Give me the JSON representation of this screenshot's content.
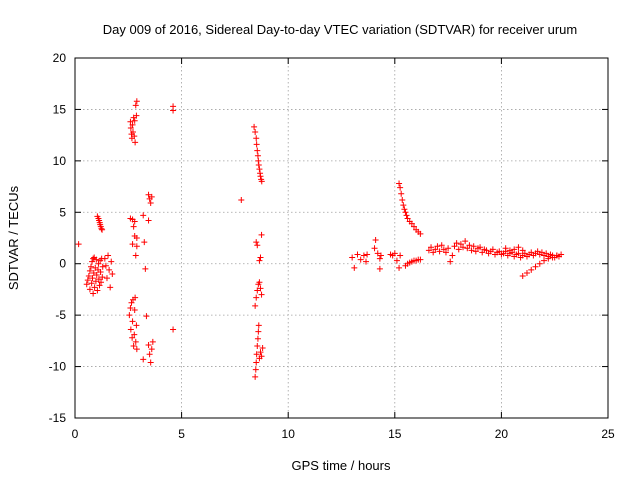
{
  "chart_data": {
    "type": "scatter",
    "title": "Day 009 of 2016, Sidereal Day-to-day VTEC variation (SDTVAR) for receiver urum",
    "xlabel": "GPS time / hours",
    "ylabel": "SDTVAR / TECUs",
    "xlim": [
      0,
      25
    ],
    "ylim": [
      -15,
      20
    ],
    "xticks": [
      0,
      5,
      10,
      15,
      20,
      25
    ],
    "xtick_labels": [
      "0",
      "5",
      "10",
      "15",
      "20",
      "25"
    ],
    "yticks": [
      -15,
      -10,
      -5,
      0,
      5,
      10,
      15,
      20
    ],
    "ytick_labels": [
      "-15",
      "-10",
      "-5",
      "0",
      "5",
      "10",
      "15",
      "20"
    ],
    "grid": true,
    "marker": "+",
    "color": "#ff0000",
    "series": [
      {
        "name": "SDTVAR",
        "points": [
          [
            0.17,
            1.9
          ],
          [
            0.55,
            -2.0
          ],
          [
            0.6,
            -1.6
          ],
          [
            0.65,
            -1.2
          ],
          [
            0.7,
            -0.7
          ],
          [
            0.7,
            -2.5
          ],
          [
            0.75,
            -0.3
          ],
          [
            0.78,
            -1.9
          ],
          [
            0.8,
            0.2
          ],
          [
            0.82,
            -1.4
          ],
          [
            0.85,
            0.5
          ],
          [
            0.85,
            -2.9
          ],
          [
            0.88,
            -0.9
          ],
          [
            0.9,
            0.6
          ],
          [
            0.92,
            -2.3
          ],
          [
            0.95,
            -0.4
          ],
          [
            0.98,
            -1.7
          ],
          [
            1.0,
            0.4
          ],
          [
            1.02,
            -1.1
          ],
          [
            1.05,
            -2.6
          ],
          [
            1.08,
            -0.6
          ],
          [
            1.1,
            0.0
          ],
          [
            1.12,
            -1.5
          ],
          [
            1.15,
            -2.1
          ],
          [
            1.18,
            0.3
          ],
          [
            1.2,
            -0.8
          ],
          [
            1.22,
            -1.8
          ],
          [
            1.25,
            0.5
          ],
          [
            1.28,
            -1.3
          ],
          [
            1.3,
            -0.3
          ],
          [
            1.05,
            4.6
          ],
          [
            1.1,
            4.4
          ],
          [
            1.13,
            4.2
          ],
          [
            1.16,
            4.0
          ],
          [
            1.18,
            3.8
          ],
          [
            1.21,
            3.6
          ],
          [
            1.24,
            3.4
          ],
          [
            1.27,
            3.3
          ],
          [
            1.4,
            0.5
          ],
          [
            1.45,
            -0.2
          ],
          [
            1.5,
            -1.4
          ],
          [
            1.55,
            0.8
          ],
          [
            1.6,
            -0.6
          ],
          [
            1.65,
            -2.3
          ],
          [
            1.7,
            0.2
          ],
          [
            1.75,
            -1.0
          ],
          [
            2.6,
            13.8
          ],
          [
            2.62,
            13.2
          ],
          [
            2.65,
            12.6
          ],
          [
            2.67,
            12.2
          ],
          [
            2.7,
            13.5
          ],
          [
            2.72,
            12.8
          ],
          [
            2.75,
            14.2
          ],
          [
            2.78,
            12.4
          ],
          [
            2.8,
            13.9
          ],
          [
            2.82,
            11.8
          ],
          [
            2.85,
            15.4
          ],
          [
            2.88,
            14.4
          ],
          [
            2.9,
            15.8
          ],
          [
            2.6,
            4.4
          ],
          [
            2.7,
            4.3
          ],
          [
            2.75,
            3.6
          ],
          [
            2.8,
            4.1
          ],
          [
            2.7,
            1.9
          ],
          [
            2.8,
            2.7
          ],
          [
            2.9,
            2.5
          ],
          [
            2.85,
            0.8
          ],
          [
            2.9,
            1.7
          ],
          [
            2.55,
            -5.0
          ],
          [
            2.6,
            -4.3
          ],
          [
            2.62,
            -6.4
          ],
          [
            2.65,
            -3.8
          ],
          [
            2.68,
            -7.2
          ],
          [
            2.7,
            -5.6
          ],
          [
            2.72,
            -3.5
          ],
          [
            2.75,
            -8.0
          ],
          [
            2.78,
            -6.9
          ],
          [
            2.8,
            -4.5
          ],
          [
            2.82,
            -3.3
          ],
          [
            2.85,
            -7.6
          ],
          [
            2.88,
            -6.0
          ],
          [
            2.9,
            -8.3
          ],
          [
            3.2,
            4.7
          ],
          [
            3.25,
            2.1
          ],
          [
            3.3,
            -0.5
          ],
          [
            3.35,
            -5.1
          ],
          [
            3.2,
            -9.3
          ],
          [
            3.45,
            6.7
          ],
          [
            3.5,
            6.3
          ],
          [
            3.55,
            5.9
          ],
          [
            3.6,
            6.5
          ],
          [
            3.45,
            4.2
          ],
          [
            3.45,
            -7.9
          ],
          [
            3.5,
            -8.8
          ],
          [
            3.55,
            -9.6
          ],
          [
            3.6,
            -8.3
          ],
          [
            3.65,
            -7.6
          ],
          [
            4.6,
            15.3
          ],
          [
            4.6,
            14.9
          ],
          [
            4.6,
            -6.4
          ],
          [
            7.8,
            6.2
          ],
          [
            8.4,
            13.3
          ],
          [
            8.45,
            12.8
          ],
          [
            8.5,
            12.2
          ],
          [
            8.52,
            11.6
          ],
          [
            8.55,
            11.0
          ],
          [
            8.58,
            10.5
          ],
          [
            8.6,
            10.0
          ],
          [
            8.62,
            9.6
          ],
          [
            8.65,
            9.2
          ],
          [
            8.68,
            8.8
          ],
          [
            8.7,
            8.5
          ],
          [
            8.73,
            8.2
          ],
          [
            8.76,
            8.0
          ],
          [
            8.5,
            2.1
          ],
          [
            8.55,
            1.8
          ],
          [
            8.65,
            0.3
          ],
          [
            8.7,
            0.6
          ],
          [
            8.75,
            2.8
          ],
          [
            8.45,
            -4.1
          ],
          [
            8.5,
            -3.3
          ],
          [
            8.55,
            -2.6
          ],
          [
            8.6,
            -2.0
          ],
          [
            8.65,
            -1.8
          ],
          [
            8.7,
            -2.4
          ],
          [
            8.75,
            -3.0
          ],
          [
            8.45,
            -11.0
          ],
          [
            8.48,
            -10.3
          ],
          [
            8.5,
            -9.6
          ],
          [
            8.52,
            -8.8
          ],
          [
            8.55,
            -8.0
          ],
          [
            8.58,
            -7.3
          ],
          [
            8.6,
            -6.6
          ],
          [
            8.62,
            -6.0
          ],
          [
            8.65,
            -9.2
          ],
          [
            8.7,
            -8.6
          ],
          [
            8.75,
            -9.0
          ],
          [
            8.8,
            -8.2
          ],
          [
            13.0,
            0.6
          ],
          [
            13.1,
            -0.4
          ],
          [
            13.25,
            0.9
          ],
          [
            13.4,
            0.4
          ],
          [
            13.55,
            0.8
          ],
          [
            13.65,
            0.2
          ],
          [
            13.7,
            0.9
          ],
          [
            14.05,
            1.5
          ],
          [
            14.1,
            2.3
          ],
          [
            14.2,
            1.0
          ],
          [
            14.3,
            0.5
          ],
          [
            14.3,
            -0.5
          ],
          [
            14.35,
            0.8
          ],
          [
            14.8,
            0.9
          ],
          [
            14.9,
            0.8
          ],
          [
            15.0,
            1.0
          ],
          [
            15.1,
            0.3
          ],
          [
            15.2,
            -0.4
          ],
          [
            15.25,
            0.8
          ],
          [
            15.2,
            7.8
          ],
          [
            15.25,
            7.4
          ],
          [
            15.3,
            6.8
          ],
          [
            15.35,
            6.2
          ],
          [
            15.4,
            5.7
          ],
          [
            15.45,
            5.3
          ],
          [
            15.5,
            5.0
          ],
          [
            15.55,
            4.7
          ],
          [
            15.6,
            4.4
          ],
          [
            15.7,
            4.1
          ],
          [
            15.8,
            3.9
          ],
          [
            15.9,
            3.6
          ],
          [
            16.0,
            3.3
          ],
          [
            16.1,
            3.1
          ],
          [
            16.2,
            2.9
          ],
          [
            15.5,
            -0.2
          ],
          [
            15.6,
            0.0
          ],
          [
            15.7,
            0.1
          ],
          [
            15.8,
            0.2
          ],
          [
            15.9,
            0.3
          ],
          [
            16.0,
            0.3
          ],
          [
            16.1,
            0.4
          ],
          [
            16.2,
            0.4
          ],
          [
            16.6,
            1.3
          ],
          [
            16.7,
            1.6
          ],
          [
            16.8,
            1.1
          ],
          [
            16.9,
            1.4
          ],
          [
            17.0,
            1.7
          ],
          [
            17.1,
            1.2
          ],
          [
            17.2,
            1.8
          ],
          [
            17.3,
            1.4
          ],
          [
            17.4,
            1.1
          ],
          [
            17.5,
            1.5
          ],
          [
            17.6,
            0.2
          ],
          [
            17.7,
            0.8
          ],
          [
            17.8,
            1.7
          ],
          [
            17.9,
            2.0
          ],
          [
            18.0,
            1.4
          ],
          [
            18.1,
            1.9
          ],
          [
            18.2,
            1.6
          ],
          [
            18.3,
            2.2
          ],
          [
            18.4,
            1.5
          ],
          [
            18.5,
            1.8
          ],
          [
            18.6,
            1.3
          ],
          [
            18.7,
            1.7
          ],
          [
            18.8,
            1.2
          ],
          [
            18.9,
            1.5
          ],
          [
            19.0,
            1.6
          ],
          [
            19.1,
            1.1
          ],
          [
            19.2,
            1.4
          ],
          [
            19.3,
            1.3
          ],
          [
            19.4,
            1.0
          ],
          [
            19.5,
            1.2
          ],
          [
            19.6,
            1.4
          ],
          [
            19.7,
            0.9
          ],
          [
            19.8,
            1.1
          ],
          [
            19.9,
            1.2
          ],
          [
            20.0,
            0.9
          ],
          [
            20.1,
            1.0
          ],
          [
            20.2,
            1.2
          ],
          [
            20.3,
            0.8
          ],
          [
            20.4,
            1.0
          ],
          [
            20.5,
            1.1
          ],
          [
            20.6,
            0.7
          ],
          [
            20.7,
            0.9
          ],
          [
            20.8,
            1.0
          ],
          [
            20.9,
            0.6
          ],
          [
            21.0,
            0.8
          ],
          [
            21.1,
            1.0
          ],
          [
            21.2,
            0.7
          ],
          [
            21.3,
            0.9
          ],
          [
            21.4,
            1.1
          ],
          [
            21.5,
            0.8
          ],
          [
            21.6,
            1.0
          ],
          [
            21.7,
            1.2
          ],
          [
            21.8,
            0.9
          ],
          [
            21.9,
            1.1
          ],
          [
            22.0,
            0.8
          ],
          [
            22.1,
            1.0
          ],
          [
            22.2,
            0.7
          ],
          [
            22.3,
            0.9
          ],
          [
            22.4,
            0.8
          ],
          [
            22.5,
            0.6
          ],
          [
            22.6,
            0.8
          ],
          [
            22.7,
            0.7
          ],
          [
            22.8,
            0.9
          ],
          [
            20.2,
            1.5
          ],
          [
            20.4,
            1.3
          ],
          [
            20.6,
            1.4
          ],
          [
            20.8,
            1.6
          ],
          [
            21.0,
            1.3
          ],
          [
            21.0,
            -1.2
          ],
          [
            21.2,
            -0.9
          ],
          [
            21.4,
            -0.6
          ],
          [
            21.6,
            -0.3
          ],
          [
            21.8,
            0.0
          ],
          [
            22.0,
            0.3
          ],
          [
            22.2,
            0.5
          ],
          [
            22.4,
            0.6
          ],
          [
            22.6,
            0.8
          ]
        ]
      }
    ]
  }
}
